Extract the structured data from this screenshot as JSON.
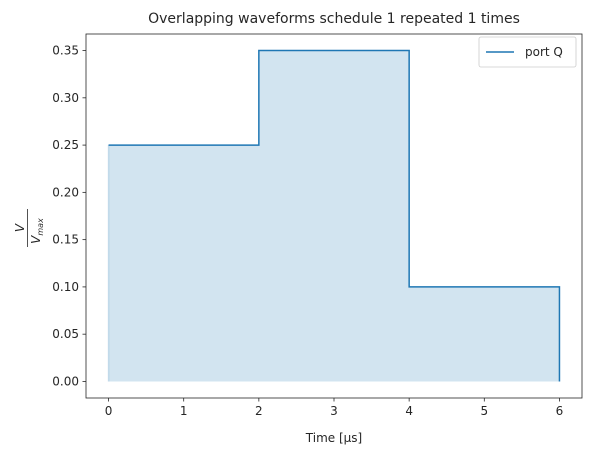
{
  "chart_data": {
    "type": "line",
    "title": "Overlapping waveforms schedule 1 repeated 1 times",
    "xlabel": "Time [μs]",
    "ylabel": {
      "numerator": "V",
      "denominator_base": "V",
      "denominator_sub": "max"
    },
    "xlim": [
      -0.3,
      6.3
    ],
    "ylim": [
      -0.0175,
      0.3675
    ],
    "xticks": [
      0,
      1,
      2,
      3,
      4,
      5,
      6
    ],
    "yticks": [
      0.0,
      0.05,
      0.1,
      0.15,
      0.2,
      0.25,
      0.3,
      0.35
    ],
    "xtick_labels": [
      "0",
      "1",
      "2",
      "3",
      "4",
      "5",
      "6"
    ],
    "ytick_labels": [
      "0.00",
      "0.05",
      "0.10",
      "0.15",
      "0.20",
      "0.25",
      "0.30",
      "0.35"
    ],
    "grid": false,
    "legend_position": "top-right",
    "series": [
      {
        "name": "port Q",
        "color": "#1f77b4",
        "fill": true,
        "x": [
          0,
          2,
          2,
          4,
          4,
          6,
          6
        ],
        "y": [
          0.25,
          0.25,
          0.35,
          0.35,
          0.1,
          0.1,
          0.0
        ]
      }
    ]
  }
}
